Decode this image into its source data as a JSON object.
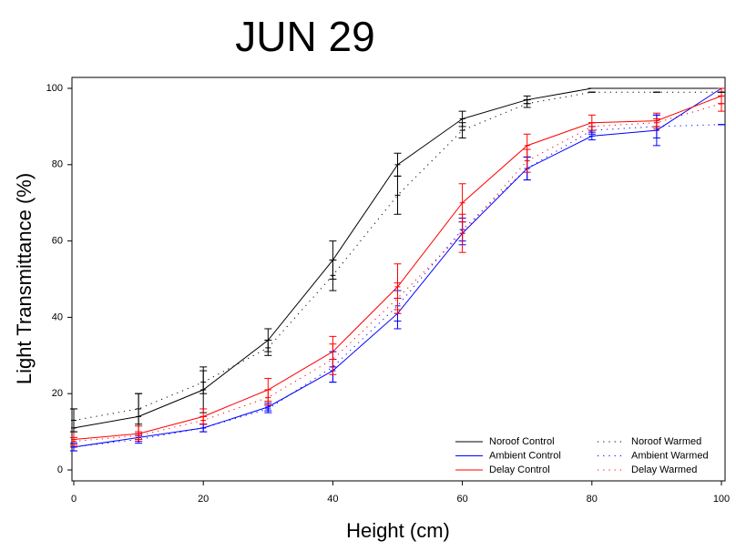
{
  "chart_data": {
    "type": "line",
    "title": "JUN 29",
    "x_label": "Height (cm)",
    "y_label": "Light Transmittance (%)",
    "x": [
      0,
      10,
      20,
      30,
      40,
      50,
      60,
      70,
      80,
      90,
      100
    ],
    "series": [
      {
        "name": "Noroof Control",
        "color": "#000000",
        "linestyle": "solid",
        "values": [
          11,
          14,
          21,
          34,
          55,
          80,
          92,
          97,
          100,
          100,
          100
        ],
        "errors": [
          5,
          6,
          6,
          3,
          5,
          3,
          2,
          1,
          0,
          0,
          0
        ]
      },
      {
        "name": "Ambient Control",
        "color": "#0000ff",
        "linestyle": "solid",
        "values": [
          6,
          8.5,
          11,
          16.5,
          26,
          41,
          62,
          79,
          87.5,
          89,
          100
        ],
        "errors": [
          1,
          1,
          1,
          1,
          3,
          4,
          3,
          3,
          1,
          4,
          0
        ]
      },
      {
        "name": "Delay Control",
        "color": "#ff0000",
        "linestyle": "solid",
        "values": [
          8,
          9.5,
          14,
          21,
          31,
          48,
          70,
          85,
          91,
          91.5,
          98
        ],
        "errors": [
          2,
          2,
          2,
          3,
          4,
          6,
          5,
          3,
          2,
          2,
          2
        ]
      },
      {
        "name": "Noroof Warmed",
        "color": "#000000",
        "linestyle": "dotted",
        "values": [
          13,
          16,
          23,
          32,
          51,
          72,
          89,
          96,
          99,
          99,
          99
        ],
        "errors": [
          3,
          4,
          3,
          2,
          4,
          5,
          2,
          1,
          0,
          0,
          0
        ]
      },
      {
        "name": "Ambient Warmed",
        "color": "#0000ff",
        "linestyle": "dotted",
        "values": [
          6,
          8,
          11,
          16,
          27,
          43,
          63,
          79,
          89,
          90,
          90.5
        ],
        "errors": [
          1,
          1,
          1,
          1,
          4,
          4,
          3,
          3,
          1,
          3,
          0
        ]
      },
      {
        "name": "Delay Warmed",
        "color": "#ff0000",
        "linestyle": "dotted",
        "values": [
          7.5,
          9,
          13,
          19,
          29,
          45,
          62,
          81,
          90,
          91,
          96
        ],
        "errors": [
          1,
          1,
          1,
          2,
          4,
          4,
          5,
          3,
          1,
          1,
          2
        ]
      }
    ],
    "xlim": [
      0,
      100
    ],
    "xticks": [
      0,
      20,
      40,
      60,
      80,
      100
    ],
    "ylim": [
      0,
      100
    ],
    "yticks": [
      0,
      20,
      40,
      60,
      80,
      100
    ],
    "grid": false,
    "legend": "lower right"
  }
}
